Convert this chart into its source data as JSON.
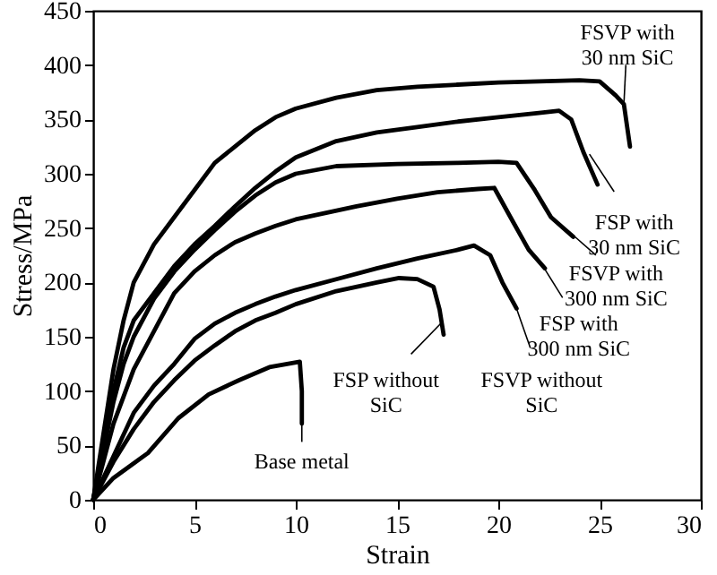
{
  "chart_data": {
    "type": "line",
    "xlabel": "Strain",
    "ylabel": "Stress/MPa",
    "xlim": [
      0,
      30
    ],
    "ylim": [
      0,
      450
    ],
    "xticks": [
      0,
      5,
      10,
      15,
      20,
      25,
      30
    ],
    "yticks": [
      0,
      50,
      100,
      150,
      200,
      250,
      300,
      350,
      400,
      450
    ],
    "grid": false,
    "marker": "none",
    "line_style": "solid",
    "series": [
      {
        "color": "#000000",
        "x": [
          0,
          0.5,
          1,
          1.5,
          2,
          3,
          4,
          5,
          6,
          7,
          8,
          9,
          10,
          12,
          14,
          16,
          18,
          20,
          22,
          24,
          25.0,
          25.8,
          26.2,
          26.5
        ],
        "values": [
          0,
          60,
          120,
          165,
          200,
          235,
          260,
          285,
          310,
          325,
          340,
          352,
          360,
          370,
          377,
          380,
          382,
          384,
          385,
          386,
          385,
          372,
          364,
          325
        ]
      },
      {
        "color": "#000000",
        "x": [
          0,
          0.5,
          1,
          1.5,
          2,
          3,
          4,
          5,
          6,
          7,
          8,
          9,
          10,
          12,
          14,
          16,
          18,
          20,
          22,
          23,
          23.6,
          24.2,
          24.9
        ],
        "values": [
          0,
          50,
          100,
          140,
          165,
          190,
          215,
          235,
          252,
          270,
          287,
          302,
          315,
          330,
          338,
          343,
          348,
          352,
          356,
          358,
          350,
          320,
          290
        ]
      },
      {
        "color": "#000000",
        "x": [
          0,
          0.5,
          1,
          1.5,
          2,
          3,
          4,
          5,
          6,
          7,
          8,
          9,
          10,
          12,
          15,
          18,
          20,
          20.9,
          21.8,
          22.6,
          23.7
        ],
        "values": [
          0,
          45,
          90,
          125,
          150,
          185,
          210,
          230,
          248,
          265,
          280,
          292,
          300,
          307,
          309,
          310,
          311,
          310,
          285,
          260,
          242
        ]
      },
      {
        "color": "#000000",
        "x": [
          0,
          0.5,
          1,
          2,
          3,
          4,
          5,
          6,
          7,
          8,
          9,
          10,
          13,
          15,
          17,
          19,
          19.8,
          20.6,
          21.5,
          22.3
        ],
        "values": [
          0,
          35,
          70,
          120,
          155,
          190,
          210,
          225,
          237,
          245,
          252,
          258,
          270,
          277,
          283,
          286,
          287,
          260,
          230,
          213
        ]
      },
      {
        "color": "#000000",
        "x": [
          0,
          1,
          2,
          3,
          4,
          5,
          6,
          7,
          8,
          9,
          10,
          12,
          14,
          16,
          18,
          18.8,
          19.6,
          20.2,
          20.9
        ],
        "values": [
          0,
          40,
          80,
          105,
          125,
          148,
          162,
          172,
          180,
          187,
          193,
          203,
          213,
          222,
          230,
          234,
          225,
          200,
          176
        ]
      },
      {
        "color": "#000000",
        "x": [
          0,
          1,
          2,
          3,
          4,
          5,
          6,
          7,
          8,
          9,
          10,
          12,
          14,
          15.1,
          16,
          16.8,
          17.1,
          17.3
        ],
        "values": [
          0,
          35,
          65,
          90,
          110,
          128,
          142,
          155,
          165,
          172,
          180,
          192,
          200,
          204,
          203,
          196,
          175,
          152
        ]
      },
      {
        "color": "#000000",
        "x": [
          0,
          1,
          2.7,
          4.2,
          5.7,
          7.2,
          8.7,
          10.2,
          10.3,
          10.3
        ],
        "values": [
          0,
          20,
          43,
          75,
          97,
          110,
          122,
          127,
          100,
          70
        ]
      }
    ],
    "annotations": [
      {
        "text": "FSVP with\n30 nm SiC",
        "x": 26.2,
        "y": 364
      },
      {
        "text": "FSP with\n30 nm SiC",
        "x": 24.5,
        "y": 318
      },
      {
        "text": "FSVP with\n300 nm SiC",
        "x": 23.6,
        "y": 245
      },
      {
        "text": "FSP with\n300 nm SiC",
        "x": 22.2,
        "y": 215
      },
      {
        "text": "FSVP without\nSiC",
        "x": 20.9,
        "y": 176
      },
      {
        "text": "FSP without\nSiC",
        "x": 17.2,
        "y": 163
      },
      {
        "text": "Base metal",
        "x": 10.3,
        "y": 75
      }
    ]
  }
}
